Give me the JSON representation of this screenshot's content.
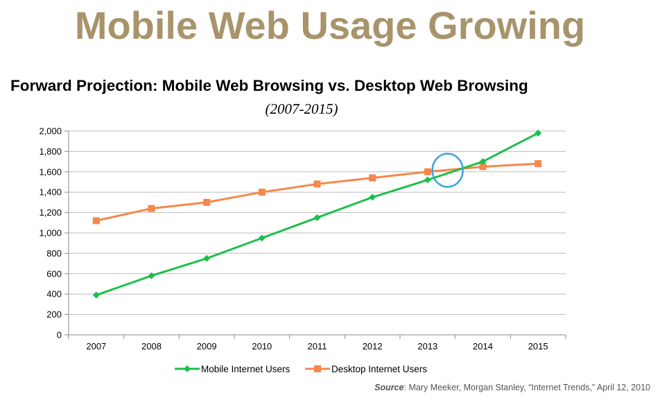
{
  "headline": "Mobile Web Usage Growing",
  "source": {
    "prefix": "Source",
    "text": ": Mary Meeker, Morgan Stanley, “Internet Trends,” April 12, 2010"
  },
  "colors": {
    "headline": "#a8946b",
    "mobile": "#1bbf4a",
    "desktop": "#f7874a",
    "highlight": "#3aa3e0",
    "grid": "#bdbdbd"
  },
  "chart_data": {
    "type": "line",
    "title": "Forward Projection: Mobile Web Browsing vs. Desktop Web Browsing",
    "subtitle": "(2007-2015)",
    "categories": [
      "2007",
      "2008",
      "2009",
      "2010",
      "2011",
      "2012",
      "2013",
      "2014",
      "2015"
    ],
    "series": [
      {
        "name": "Mobile Internet Users",
        "marker": "diamond",
        "values": [
          390,
          580,
          750,
          950,
          1150,
          1350,
          1520,
          1700,
          1980
        ]
      },
      {
        "name": "Desktop Internet Users",
        "marker": "square",
        "values": [
          1120,
          1240,
          1300,
          1400,
          1480,
          1540,
          1600,
          1650,
          1680
        ]
      }
    ],
    "ylim": [
      0,
      2000
    ],
    "yticks": [
      "0",
      "200",
      "400",
      "600",
      "800",
      "1,000",
      "1,200",
      "1,400",
      "1,600",
      "1,800",
      "2,000"
    ],
    "grid": true,
    "legend": "bottom",
    "annotation": {
      "type": "circle",
      "marks": "crossover between 2013 and 2014"
    }
  }
}
